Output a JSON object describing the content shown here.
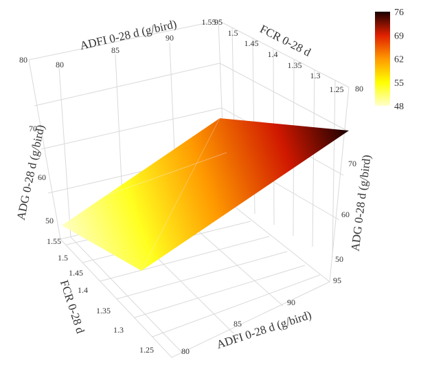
{
  "chart_data": {
    "type": "surface3d",
    "title": "",
    "axes": {
      "x": {
        "label": "ADFI 0-28 d (g/bird)",
        "range": [
          78,
          95
        ],
        "ticks": [
          80,
          85,
          90,
          95
        ]
      },
      "y": {
        "label": "FCR 0-28 d",
        "range": [
          1.25,
          1.55
        ],
        "ticks": [
          1.25,
          1.3,
          1.35,
          1.4,
          1.45,
          1.5,
          1.55
        ]
      },
      "z": {
        "label": "ADG 0-28 d (g/bird)",
        "range": [
          48,
          80
        ],
        "ticks": [
          50,
          60,
          70,
          80
        ]
      }
    },
    "surface_corners": [
      {
        "adfi": 78,
        "fcr": 1.55,
        "adg": 50
      },
      {
        "adfi": 95,
        "fcr": 1.55,
        "adg": 61
      },
      {
        "adfi": 95,
        "fcr": 1.25,
        "adg": 76
      },
      {
        "adfi": 78,
        "fcr": 1.25,
        "adg": 62
      }
    ],
    "colorbar": {
      "ticks": [
        48,
        55,
        62,
        69,
        76
      ],
      "range": [
        48,
        76
      ],
      "colors": [
        "#ffffcc",
        "#ffff00",
        "#ff9900",
        "#e02000",
        "#1a0000"
      ]
    },
    "grid": true
  }
}
